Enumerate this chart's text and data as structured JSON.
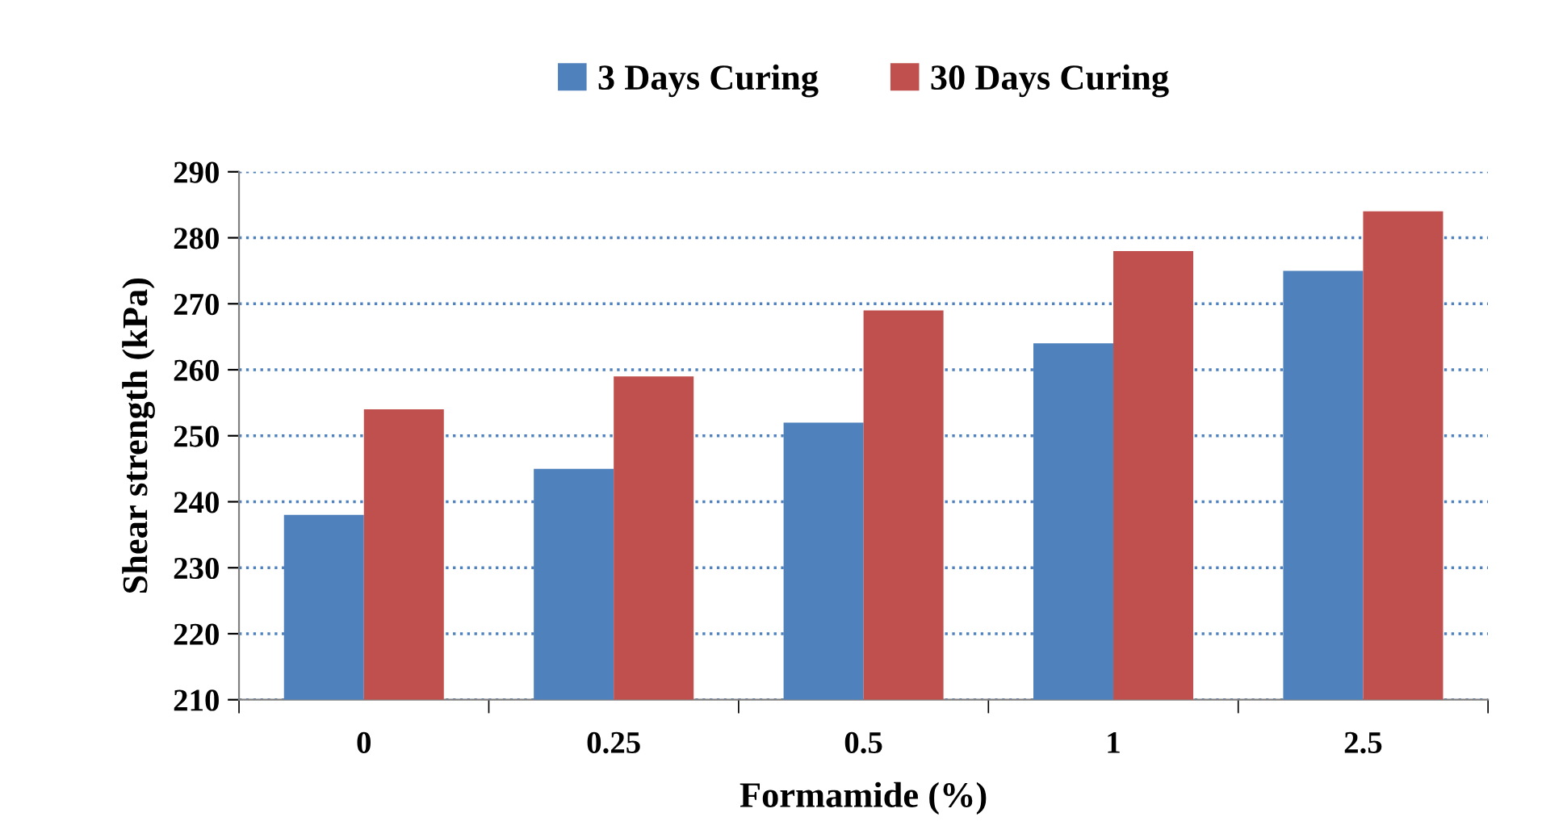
{
  "chart_data": {
    "type": "bar",
    "xlabel": "Formamide (%)",
    "ylabel": "Shear strength (kPa)",
    "categories": [
      "0",
      "0.25",
      "0.5",
      "1",
      "2.5"
    ],
    "series": [
      {
        "name": "3 Days Curing",
        "color": "#4f81bd",
        "values": [
          238,
          245,
          252,
          264,
          275
        ]
      },
      {
        "name": "30 Days Curing",
        "color": "#c0504d",
        "values": [
          254,
          259,
          269,
          278,
          284
        ]
      }
    ],
    "ylim": [
      210,
      290
    ],
    "yticks": [
      210,
      220,
      230,
      240,
      250,
      260,
      270,
      280,
      290
    ],
    "grid": "y",
    "legend": "top"
  }
}
